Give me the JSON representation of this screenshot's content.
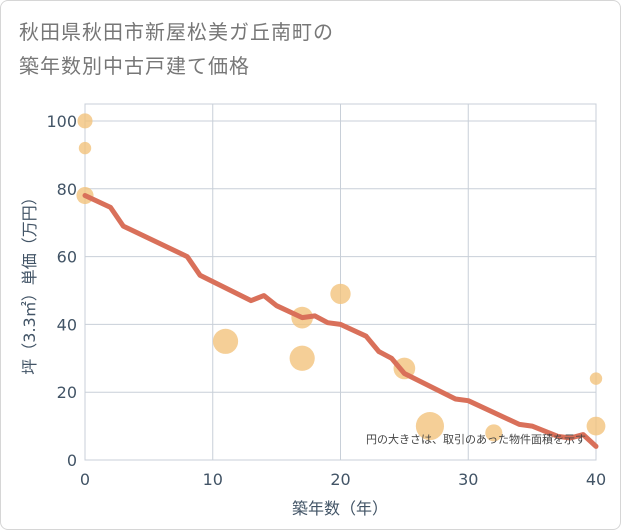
{
  "title_lines": [
    "秋田県秋田市新屋松美ガ丘南町の",
    "築年数別中古戸建て価格"
  ],
  "chart_data": {
    "type": "scatter",
    "title": "秋田県秋田市新屋松美ガ丘南町の築年数別中古戸建て価格",
    "xlabel": "築年数（年）",
    "ylabel": "坪（3.3㎡）単価（万円）",
    "xlim": [
      0,
      40
    ],
    "ylim": [
      0,
      105
    ],
    "x_ticks": [
      0,
      10,
      20,
      30,
      40
    ],
    "y_ticks": [
      0,
      20,
      40,
      60,
      80,
      100
    ],
    "grid": true,
    "note": "円の大きさは、取引のあった物件面積を示す",
    "bubble_color": "#f2c27a",
    "trend_color": "#d9705a",
    "points": [
      {
        "x": 0,
        "y": 100,
        "size": 2
      },
      {
        "x": 0,
        "y": 92,
        "size": 1
      },
      {
        "x": 0,
        "y": 78,
        "size": 3
      },
      {
        "x": 11,
        "y": 35,
        "size": 9
      },
      {
        "x": 17,
        "y": 42,
        "size": 6
      },
      {
        "x": 17,
        "y": 30,
        "size": 9
      },
      {
        "x": 20,
        "y": 49,
        "size": 5
      },
      {
        "x": 25,
        "y": 27,
        "size": 6
      },
      {
        "x": 27,
        "y": 10,
        "size": 12
      },
      {
        "x": 32,
        "y": 8,
        "size": 3
      },
      {
        "x": 40,
        "y": 10,
        "size": 4
      },
      {
        "x": 40,
        "y": 24,
        "size": 1
      }
    ],
    "trend": {
      "x": [
        0,
        2,
        3,
        8,
        9,
        13,
        14,
        15,
        17,
        18,
        19,
        20,
        22,
        23,
        24,
        25,
        29,
        30,
        34,
        35,
        37,
        38,
        39,
        40
      ],
      "y": [
        78,
        74.5,
        69,
        60,
        54.5,
        47,
        48.5,
        45.5,
        42,
        42.5,
        40.5,
        40,
        36.5,
        32,
        30,
        25.5,
        18,
        17.5,
        10.5,
        10,
        7,
        6.5,
        7.5,
        4
      ]
    }
  }
}
